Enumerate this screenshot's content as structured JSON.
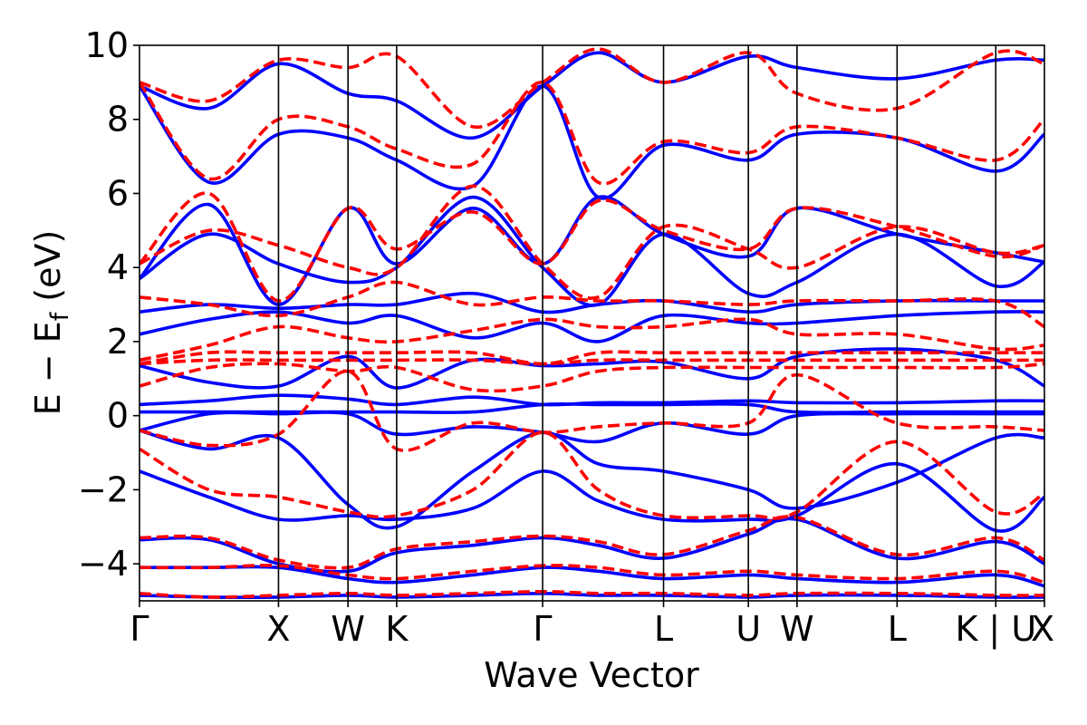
{
  "chart_data": {
    "type": "line",
    "xlabel": "Wave Vector",
    "ylabel_main": "E − E",
    "ylabel_sub": "f",
    "ylabel_unit": " (eV)",
    "ylim": [
      -5,
      10
    ],
    "yticks": [
      -4,
      -2,
      0,
      2,
      4,
      6,
      8,
      10
    ],
    "ytick_labels": [
      "−4",
      "−2",
      "0",
      "2",
      "4",
      "6",
      "8",
      "10"
    ],
    "xlim": [
      0,
      6.51
    ],
    "kpoints": [
      {
        "label": "Γ",
        "x": 0.0
      },
      {
        "label": "X",
        "x": 1.0
      },
      {
        "label": "W",
        "x": 1.5
      },
      {
        "label": "K",
        "x": 1.85
      },
      {
        "label": "Γ",
        "x": 2.9
      },
      {
        "label": "L",
        "x": 3.77
      },
      {
        "label": "U",
        "x": 4.38
      },
      {
        "label": "W",
        "x": 4.73
      },
      {
        "label": "L",
        "x": 5.45
      },
      {
        "label": "K | U",
        "x": 6.16
      },
      {
        "label": "X",
        "x": 6.51
      }
    ],
    "grid": false,
    "legend": "none",
    "colors": {
      "series_a": "#0000ff",
      "series_b": "#ff0000"
    },
    "series": [
      {
        "style": "solid",
        "color": "#0000ff",
        "bands": [
          {
            "x": [
              0,
              0.5,
              1.0,
              1.5,
              1.85,
              2.4,
              2.9,
              3.3,
              3.77,
              4.38,
              4.73,
              5.45,
              6.16,
              6.51
            ],
            "y": [
              -4.85,
              -4.9,
              -4.9,
              -4.85,
              -4.9,
              -4.85,
              -4.8,
              -4.85,
              -4.85,
              -4.9,
              -4.85,
              -4.85,
              -4.9,
              -4.9
            ]
          },
          {
            "x": [
              0,
              0.5,
              1.0,
              1.5,
              1.85,
              2.4,
              2.9,
              3.3,
              3.77,
              4.38,
              4.73,
              5.45,
              6.16,
              6.51
            ],
            "y": [
              -4.1,
              -4.1,
              -4.1,
              -4.4,
              -4.5,
              -4.3,
              -4.1,
              -4.2,
              -4.4,
              -4.3,
              -4.4,
              -4.5,
              -4.3,
              -4.6
            ]
          },
          {
            "x": [
              0,
              0.5,
              1.0,
              1.5,
              1.85,
              2.4,
              2.9,
              3.3,
              3.77,
              4.38,
              4.73,
              5.45,
              6.16,
              6.51
            ],
            "y": [
              -3.35,
              -3.35,
              -4.0,
              -4.2,
              -3.7,
              -3.5,
              -3.3,
              -3.5,
              -3.85,
              -3.2,
              -2.8,
              -3.85,
              -3.4,
              -4.0
            ]
          },
          {
            "x": [
              0,
              0.5,
              1.0,
              1.5,
              1.85,
              2.4,
              2.9,
              3.3,
              3.77,
              4.38,
              4.73,
              5.45,
              6.16,
              6.51
            ],
            "y": [
              -1.5,
              -2.2,
              -2.8,
              -2.7,
              -2.8,
              -2.5,
              -1.5,
              -2.3,
              -2.8,
              -2.8,
              -2.7,
              -1.3,
              -3.1,
              -2.2
            ]
          },
          {
            "x": [
              0,
              0.5,
              1.0,
              1.5,
              1.85,
              2.4,
              2.9,
              3.3,
              3.77,
              4.38,
              4.73,
              5.45,
              6.16,
              6.51
            ],
            "y": [
              -0.4,
              -0.9,
              -0.6,
              -2.4,
              -3.0,
              -1.5,
              -0.45,
              -1.3,
              -1.5,
              -2.0,
              -2.5,
              -1.8,
              -0.6,
              -0.6
            ]
          },
          {
            "x": [
              0,
              0.5,
              1.0,
              1.5,
              1.85,
              2.4,
              2.9,
              3.3,
              3.77,
              4.38,
              4.73,
              5.45,
              6.16,
              6.51
            ],
            "y": [
              -0.4,
              0.05,
              0.05,
              0.05,
              -0.5,
              -0.3,
              -0.45,
              -0.7,
              -0.2,
              -0.5,
              0.0,
              0.05,
              0.05,
              0.05
            ]
          },
          {
            "x": [
              0,
              0.5,
              1.0,
              1.5,
              1.85,
              2.4,
              2.9,
              3.3,
              3.77,
              4.38,
              4.73,
              5.45,
              6.16,
              6.51
            ],
            "y": [
              0.1,
              0.1,
              0.1,
              0.1,
              0.1,
              0.1,
              0.3,
              0.3,
              0.3,
              0.3,
              0.1,
              0.1,
              0.1,
              0.1
            ]
          },
          {
            "x": [
              0,
              0.5,
              1.0,
              1.5,
              1.85,
              2.4,
              2.9,
              3.3,
              3.77,
              4.38,
              4.73,
              5.45,
              6.16,
              6.51
            ],
            "y": [
              0.3,
              0.4,
              0.55,
              0.45,
              0.3,
              0.5,
              0.3,
              0.35,
              0.35,
              0.4,
              0.35,
              0.35,
              0.4,
              0.4
            ]
          },
          {
            "x": [
              0,
              0.5,
              1.0,
              1.5,
              1.85,
              2.4,
              2.9,
              3.3,
              3.77,
              4.38,
              4.73,
              5.45,
              6.16,
              6.51
            ],
            "y": [
              1.35,
              0.9,
              0.8,
              1.6,
              0.75,
              1.5,
              1.35,
              1.4,
              1.45,
              1.0,
              1.6,
              1.8,
              1.5,
              0.8
            ]
          },
          {
            "x": [
              0,
              0.5,
              1.0,
              1.5,
              1.85,
              2.4,
              2.9,
              3.3,
              3.77,
              4.38,
              4.73,
              5.45,
              6.16,
              6.51
            ],
            "y": [
              2.2,
              2.6,
              2.8,
              2.5,
              2.7,
              2.1,
              2.5,
              2.0,
              2.7,
              2.5,
              2.5,
              2.7,
              2.8,
              2.8
            ]
          },
          {
            "x": [
              0,
              0.5,
              1.0,
              1.5,
              1.85,
              2.4,
              2.9,
              3.3,
              3.77,
              4.38,
              4.73,
              5.45,
              6.16,
              6.51
            ],
            "y": [
              2.8,
              3.0,
              2.9,
              3.0,
              3.0,
              3.3,
              2.8,
              3.0,
              3.1,
              2.8,
              3.0,
              3.1,
              3.1,
              3.1
            ]
          },
          {
            "x": [
              0,
              0.5,
              1.0,
              1.5,
              1.85,
              2.4,
              2.9,
              3.3,
              3.77,
              4.38,
              4.73,
              5.45,
              6.16,
              6.51
            ],
            "y": [
              3.7,
              4.9,
              4.1,
              3.6,
              4.0,
              5.9,
              4.0,
              3.0,
              4.9,
              3.3,
              3.6,
              4.9,
              3.5,
              4.15
            ]
          },
          {
            "x": [
              0,
              0.5,
              1.0,
              1.5,
              1.85,
              2.4,
              2.9,
              3.3,
              3.77,
              4.38,
              4.73,
              5.45,
              6.16,
              6.51
            ],
            "y": [
              3.7,
              5.7,
              3.0,
              5.6,
              4.1,
              5.6,
              4.1,
              5.9,
              4.9,
              4.3,
              5.6,
              4.9,
              4.4,
              4.15
            ]
          },
          {
            "x": [
              0,
              0.5,
              1.0,
              1.5,
              1.85,
              2.4,
              2.9,
              3.3,
              3.77,
              4.38,
              4.73,
              5.45,
              6.16,
              6.51
            ],
            "y": [
              8.9,
              6.3,
              7.6,
              7.5,
              6.9,
              6.2,
              8.9,
              5.9,
              7.3,
              6.9,
              7.6,
              7.5,
              6.6,
              7.6
            ]
          },
          {
            "x": [
              0,
              0.5,
              1.0,
              1.5,
              1.85,
              2.4,
              2.9,
              3.3,
              3.77,
              4.38,
              4.73,
              5.45,
              6.16,
              6.51
            ],
            "y": [
              8.9,
              8.3,
              9.5,
              8.7,
              8.5,
              7.5,
              8.9,
              9.8,
              9.0,
              9.7,
              9.4,
              9.1,
              9.6,
              9.6
            ]
          }
        ]
      },
      {
        "style": "dashed",
        "color": "#ff0000",
        "bands": [
          {
            "x": [
              0,
              0.5,
              1.0,
              1.5,
              1.85,
              2.4,
              2.9,
              3.3,
              3.77,
              4.38,
              4.73,
              5.45,
              6.16,
              6.51
            ],
            "y": [
              -4.8,
              -4.9,
              -4.85,
              -4.8,
              -4.85,
              -4.8,
              -4.75,
              -4.8,
              -4.8,
              -4.85,
              -4.8,
              -4.8,
              -4.85,
              -4.85
            ]
          },
          {
            "x": [
              0,
              0.5,
              1.0,
              1.5,
              1.85,
              2.4,
              2.9,
              3.3,
              3.77,
              4.38,
              4.73,
              5.45,
              6.16,
              6.51
            ],
            "y": [
              -4.1,
              -4.1,
              -4.05,
              -4.3,
              -4.4,
              -4.2,
              -4.05,
              -4.1,
              -4.3,
              -4.2,
              -4.3,
              -4.4,
              -4.2,
              -4.5
            ]
          },
          {
            "x": [
              0,
              0.5,
              1.0,
              1.5,
              1.85,
              2.4,
              2.9,
              3.3,
              3.77,
              4.38,
              4.73,
              5.45,
              6.16,
              6.51
            ],
            "y": [
              -3.3,
              -3.3,
              -3.9,
              -4.1,
              -3.6,
              -3.4,
              -3.25,
              -3.4,
              -3.75,
              -3.1,
              -2.75,
              -3.75,
              -3.3,
              -3.9
            ]
          },
          {
            "x": [
              0,
              0.5,
              1.0,
              1.5,
              1.85,
              2.4,
              2.9,
              3.3,
              3.77,
              4.38,
              4.73,
              5.45,
              6.16,
              6.51
            ],
            "y": [
              -0.9,
              -2.0,
              -2.2,
              -2.6,
              -2.7,
              -2.0,
              -0.45,
              -2.0,
              -2.7,
              -2.7,
              -2.6,
              -0.7,
              -2.6,
              -2.1
            ]
          },
          {
            "x": [
              0,
              0.5,
              1.0,
              1.5,
              1.85,
              2.4,
              2.9,
              3.3,
              3.77,
              4.38,
              4.73,
              5.45,
              6.16,
              6.51
            ],
            "y": [
              -0.4,
              -0.8,
              -0.5,
              1.2,
              -0.9,
              -0.2,
              -0.45,
              -0.3,
              -0.2,
              -0.2,
              1.1,
              -0.2,
              -0.3,
              -0.4
            ]
          },
          {
            "x": [
              0,
              0.5,
              1.0,
              1.5,
              1.85,
              2.4,
              2.9,
              3.3,
              3.77,
              4.38,
              4.73,
              5.45,
              6.16,
              6.51
            ],
            "y": [
              0.8,
              1.3,
              1.4,
              1.2,
              1.3,
              0.7,
              0.8,
              1.2,
              1.3,
              1.3,
              1.3,
              1.3,
              1.3,
              1.4
            ]
          },
          {
            "x": [
              0,
              0.5,
              1.0,
              1.5,
              1.85,
              2.4,
              2.9,
              3.3,
              3.77,
              4.38,
              4.73,
              5.45,
              6.16,
              6.51
            ],
            "y": [
              1.4,
              1.5,
              1.5,
              1.5,
              1.5,
              1.5,
              1.4,
              1.5,
              1.5,
              1.5,
              1.5,
              1.5,
              1.5,
              1.5
            ]
          },
          {
            "x": [
              0,
              0.5,
              1.0,
              1.5,
              1.85,
              2.4,
              2.9,
              3.3,
              3.77,
              4.38,
              4.73,
              5.45,
              6.16,
              6.51
            ],
            "y": [
              1.4,
              1.7,
              1.7,
              1.7,
              1.7,
              1.7,
              1.4,
              1.7,
              1.7,
              1.7,
              1.7,
              1.7,
              1.7,
              1.7
            ]
          },
          {
            "x": [
              0,
              0.5,
              1.0,
              1.5,
              1.85,
              2.4,
              2.9,
              3.3,
              3.77,
              4.38,
              4.73,
              5.45,
              6.16,
              6.51
            ],
            "y": [
              1.5,
              1.9,
              2.4,
              2.1,
              2.0,
              2.3,
              2.6,
              2.4,
              2.4,
              2.6,
              2.2,
              2.2,
              1.8,
              1.9
            ]
          },
          {
            "x": [
              0,
              0.5,
              1.0,
              1.5,
              1.85,
              2.4,
              2.9,
              3.3,
              3.77,
              4.38,
              4.73,
              5.45,
              6.16,
              6.51
            ],
            "y": [
              3.2,
              3.0,
              2.7,
              3.2,
              3.6,
              3.0,
              3.2,
              3.1,
              3.1,
              3.0,
              3.1,
              3.1,
              3.1,
              2.4
            ]
          },
          {
            "x": [
              0,
              0.5,
              1.0,
              1.5,
              1.85,
              2.4,
              2.9,
              3.3,
              3.77,
              4.38,
              4.73,
              5.45,
              6.16,
              6.51
            ],
            "y": [
              4.1,
              5.0,
              4.6,
              4.0,
              4.0,
              6.2,
              4.1,
              3.2,
              5.1,
              4.5,
              4.0,
              5.1,
              4.4,
              4.6
            ]
          },
          {
            "x": [
              0,
              0.5,
              1.0,
              1.5,
              1.85,
              2.4,
              2.9,
              3.3,
              3.77,
              4.38,
              4.73,
              5.45,
              6.16,
              6.51
            ],
            "y": [
              4.1,
              6.0,
              3.1,
              5.6,
              4.5,
              5.5,
              4.1,
              5.8,
              5.0,
              4.5,
              5.6,
              5.1,
              4.3,
              4.6
            ]
          },
          {
            "x": [
              0,
              0.5,
              1.0,
              1.5,
              1.85,
              2.4,
              2.9,
              3.3,
              3.77,
              4.38,
              4.73,
              5.45,
              6.16,
              6.51
            ],
            "y": [
              9.0,
              6.4,
              8.0,
              7.8,
              7.2,
              6.8,
              9.0,
              6.3,
              7.4,
              7.1,
              7.8,
              7.5,
              6.9,
              8.0
            ]
          },
          {
            "x": [
              0,
              0.5,
              1.0,
              1.5,
              1.85,
              2.4,
              2.9,
              3.3,
              3.77,
              4.38,
              4.73,
              5.45,
              6.16,
              6.51
            ],
            "y": [
              9.0,
              8.5,
              9.6,
              9.4,
              9.7,
              7.8,
              9.0,
              9.9,
              9.0,
              9.8,
              8.7,
              8.3,
              9.8,
              9.5
            ]
          }
        ]
      }
    ]
  }
}
